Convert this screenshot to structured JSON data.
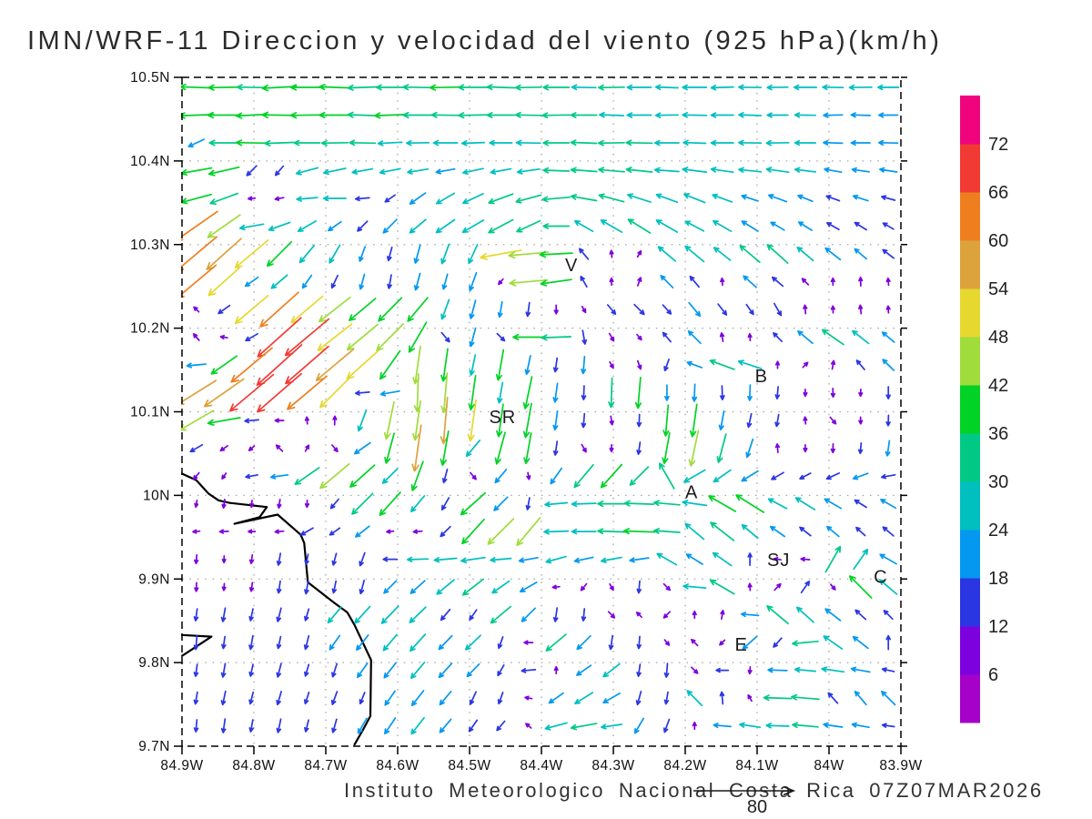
{
  "title": "IMN/WRF-11 Direccion y velocidad del viento (925 hPa)(km/h)",
  "footer": {
    "text": "Instituto Meteorologico Nacional Costa Rica 07Z07MAR2026",
    "ref_label": "80"
  },
  "chart_data": {
    "type": "wind_vector_field",
    "title": "IMN/WRF-11 Direccion y velocidad del viento (925 hPa)(km/h)",
    "units": "km/h",
    "level": "925 hPa",
    "lon_range_w": [
      84.9,
      83.9
    ],
    "lat_range_n": [
      9.7,
      10.5
    ],
    "grid_on": true,
    "x_ticks": {
      "labels": [
        "84.9W",
        "84.8W",
        "84.7W",
        "84.6W",
        "84.5W",
        "84.4W",
        "84.3W",
        "84.2W",
        "84.1W",
        "84W",
        "83.9W"
      ],
      "lons": [
        84.9,
        84.8,
        84.7,
        84.6,
        84.5,
        84.4,
        84.3,
        84.2,
        84.1,
        84.0,
        83.9
      ]
    },
    "y_ticks": {
      "labels": [
        "10.5N",
        "10.4N",
        "10.3N",
        "10.2N",
        "10.1N",
        "10N",
        "9.9N",
        "9.8N",
        "9.7N"
      ],
      "lats": [
        10.5,
        10.4,
        10.3,
        10.2,
        10.1,
        10.0,
        9.9,
        9.8,
        9.7
      ]
    },
    "reference_vector": {
      "speed": 80,
      "label": "80"
    },
    "colorbar": {
      "levels_kmh": [
        6,
        12,
        18,
        24,
        30,
        36,
        42,
        48,
        54,
        60,
        66,
        72
      ],
      "colors_bottom_to_top": [
        "#a501c9",
        "#7d00df",
        "#2b36e3",
        "#0498f0",
        "#00bfbf",
        "#00c986",
        "#00d226",
        "#9fdc3c",
        "#e6d82e",
        "#dca23c",
        "#ef7f1e",
        "#f13a34",
        "#f0047e"
      ]
    },
    "markers": [
      {
        "label": "V",
        "lon": 84.358,
        "lat": 10.276
      },
      {
        "label": "B",
        "lon": 84.094,
        "lat": 10.143
      },
      {
        "label": "SR",
        "lon": 84.454,
        "lat": 10.094
      },
      {
        "label": "A",
        "lon": 84.191,
        "lat": 10.004
      },
      {
        "label": "SJ",
        "lon": 84.07,
        "lat": 9.923
      },
      {
        "label": "C",
        "lon": 83.928,
        "lat": 9.903
      },
      {
        "label": "E",
        "lon": 84.122,
        "lat": 9.822
      }
    ],
    "coastline": {
      "main": [
        [
          84.9,
          10.026
        ],
        [
          84.88,
          10.018
        ],
        [
          84.863,
          10.002
        ],
        [
          84.849,
          9.994
        ],
        [
          84.834,
          9.991
        ],
        [
          84.782,
          9.986
        ],
        [
          84.792,
          9.974
        ],
        [
          84.827,
          9.966
        ],
        [
          84.767,
          9.977
        ],
        [
          84.735,
          9.953
        ],
        [
          84.73,
          9.943
        ],
        [
          84.725,
          9.896
        ],
        [
          84.689,
          9.872
        ],
        [
          84.67,
          9.86
        ],
        [
          84.66,
          9.845
        ],
        [
          84.637,
          9.803
        ],
        [
          84.638,
          9.736
        ],
        [
          84.648,
          9.72
        ],
        [
          84.66,
          9.702
        ]
      ],
      "spit": [
        [
          84.9,
          9.833
        ],
        [
          84.859,
          9.831
        ],
        [
          84.9,
          9.808
        ]
      ]
    },
    "vectors": {
      "note": "each cell is dir,speed ; dir degrees pointing-to (0=E,90=N,180=W,270=S), speed km/h",
      "cols": 26,
      "rows": 24,
      "lon0": 84.88,
      "dlon": 0.0385,
      "lat0": 10.488,
      "dlat": 0.0332,
      "cells": [
        "178,38 181,36 179,34 183,40 180,38 178,36 182,34 180,32 179,34 181,36 180,34 178,32 181,30 180,30 179,28 181,30 180,28 178,26 180,28 182,26 179,26 181,24 180,26 179,24 181,26 180,24",
        "182,40 180,38 183,36 179,40 181,38 180,36 178,34 182,36 180,34 179,32 181,34 180,32 179,30 181,32 180,30 178,28 180,28 181,26 179,28 180,26 178,26 180,24 179,24 181,22 178,22 180,22",
        "205,20 180,34 179,36 182,34 180,30 181,30 179,30 183,28 181,26 180,28 182,26 180,26 179,28 180,30 178,30 181,30 179,30 180,28 178,26 180,26 179,26 181,26 180,24 178,22 180,22 179,22",
        "190,36 193,36 225,16 230,14 195,26 192,26 190,24 191,24 189,24 190,22 192,24 190,24 188,26 178,30 176,30 175,30 174,30 176,28 173,28 172,26 174,26 172,26 173,24 170,20 172,20 171,20",
        "195,36 200,34 185,8 190,10 185,24 180,26 185,16 215,14 215,22 210,24 205,26 200,30 195,30 185,32 170,30 165,30 162,28 160,26 158,26 160,24 162,20 160,22 158,18 160,16 162,18 165,16",
        "215,60 215,46 190,28 200,26 210,24 215,18 225,16 225,22 220,24 215,26 210,28 208,32 205,30 180,30 150,24 150,28 148,30 150,28 152,24 150,24 148,22 150,18 148,18 150,16 148,16 150,14",
        "220,62 222,54 220,50 225,40 230,26 240,24 250,18 255,16 255,22 250,24 245,24 190,48 185,46 183,38 130,16 95,8 60,8 140,26 140,28 142,24 140,30 138,32 140,24 142,22 140,18 142,16",
        "220,60 222,48 215,18 220,24 235,18 245,16 255,18 260,16 255,20 255,18 250,22 230,8 185,44 188,36 120,14 90,8 70,10 135,20 130,16 95,8 138,20 140,16 135,10 90,8 92,10 95,8",
        "135,8 215,16 220,50 222,60 220,48 218,46 220,40 225,38 230,36 250,24 255,22 260,18 262,16 270,10 300,8 310,14 315,16 312,14 310,20 308,16 305,14 300,16 95,10 92,8 96,10 94,8",
        "130,10 170,8 210,16 222,68 220,66 218,50 220,46 225,44 240,40 310,14 255,22 315,12 180,36 182,34 280,16 300,10 310,8 130,14 135,20 100,10 95,8 135,14 140,22 145,30 142,24 140,18",
        "185,22 215,36 220,62 222,70 221,66 220,56 222,48 235,40 262,44 262,38 258,24 260,36 258,22 262,16 265,20 300,8 290,10 250,14 160,18 160,30 162,28 90,8 45,8 80,10 130,14 135,18",
        "212,54 215,56 220,66 221,68 220,60 225,48 185,16 190,22 268,44 265,46 262,40 260,24 258,38 262,22 268,16 268,34 265,36 270,18 268,20 272,16 268,18 265,14 270,8 272,10 268,8 270,14",
        "210,46 190,38 185,16 180,10 95,8 88,10 250,26 258,44 262,46 265,54 262,48 262,38 260,40 262,22 265,16 280,10 268,14 265,36 262,38 260,22 258,16 260,14 95,8 310,10 272,8 268,12",
        "210,16 215,10 220,8 135,10 60,8 310,10 215,22 255,36 262,54 260,40 230,24 255,38 260,36 262,16 300,10 270,8 262,14 260,36 258,42 255,34 252,22 95,10 270,8 268,10 265,12 262,18",
        "230,10 235,8 190,14 188,20 215,34 220,44 222,38 225,24 250,36 255,16 310,10 230,20 280,8 235,22 230,34 228,36 225,30 120,34 210,28 215,24 212,22 210,16 208,14 205,16 200,18 190,16",
        "260,8 262,10 265,8 262,10 268,8 230,14 225,34 228,36 230,24 240,16 222,38 225,22 260,14 185,26 182,28 180,32 178,34 175,30 172,28 150,36 148,38 152,24 148,26 150,22 148,16 150,20",
        "185,8 182,10 180,8 185,10 210,16 215,14 218,20 185,8 185,10 225,16 228,38 225,42 230,42 182,28 180,28 178,32 178,36 176,30 140,28 142,34 140,24 145,20 142,16 140,18 138,14 140,16",
        "265,10 268,8 262,10 260,14 258,12 255,14 250,16 180,16 182,24 185,26 188,28 185,24 190,22 195,24 192,22 190,24 188,22 150,26 148,22 145,26 90,14 170,8 175,10 60,34 55,28 150,22",
        "268,10 265,8 262,10 262,14 260,16 258,14 255,16 225,20 222,22 220,26 218,30 215,24 210,22 185,8 230,10 300,8 265,14 315,10 175,26 150,32 95,8 45,10 55,16 310,8 135,36 140,26",
        "262,14 260,16 258,14 256,16 254,14 230,24 228,26 226,28 224,26 230,16 235,14 220,30 225,22 262,16 265,14 315,10 135,8 225,10 90,8 80,10 175,20 140,32 138,26 142,22 138,16 135,14",
        "265,16 262,14 260,16 258,14 256,16 235,20 232,22 230,24 228,26 226,22 224,24 250,14 180,10 220,30 225,22 262,16 265,14 310,8 135,10 225,8 222,22 228,14 185,30 145,26 142,22 90,16",
        "262,14 260,16 258,14 256,16 254,14 252,16 235,20 232,22 230,24 228,22 226,20 240,14 185,16 90,8 215,20 218,24 262,14 265,16 315,10 180,14 265,8 178,22 175,24 172,26 170,22 168,14",
        "260,14 258,16 256,14 254,16 252,14 250,16 248,14 235,20 232,22 230,20 245,16 250,14 170,8 215,20 212,24 210,22 255,16 260,14 135,24 95,14 120,8 178,32 175,32 132,16 130,20 135,22",
        "265,14 262,16 260,14 258,16 256,14 254,16 240,20 236,22 232,24 230,20 235,16 230,14 140,8 195,26 190,30 188,24 240,20 250,16 90,8 175,20 172,24 178,26 175,30 172,22 170,20 172,14"
      ]
    }
  }
}
